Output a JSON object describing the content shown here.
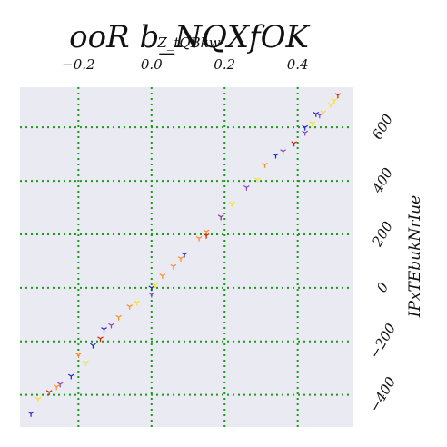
{
  "chart_data": {
    "type": "scatter",
    "title": "ooR b_NQXfOK",
    "xlabel": "Z_tQBkw",
    "ylabel": "IPxTEbukNrIue",
    "xlim": [
      -0.36,
      0.55
    ],
    "ylim": [
      -520,
      750
    ],
    "x_ticks": [
      -0.2,
      0.0,
      0.2,
      0.4
    ],
    "x_tick_labels": [
      "−0.2",
      "0.0",
      "0.2",
      "0.4"
    ],
    "y_ticks": [
      -400,
      -200,
      0,
      200,
      400,
      600
    ],
    "y_tick_labels": [
      "−400",
      "−200",
      "0",
      "200",
      "400",
      "600"
    ],
    "x_axis_position": "top",
    "y_axis_position": "right",
    "grid": true,
    "grid_style": "dotted",
    "grid_color": "#1a9a1a",
    "background": "#eaeaf2",
    "marker": "tri_down",
    "series": [
      {
        "color": "#2222cc",
        "x": [
          -0.33,
          -0.22,
          -0.16,
          -0.13,
          0.0,
          0.09,
          0.34,
          0.42,
          0.45
        ],
        "y": [
          -470,
          -330,
          -215,
          -155,
          0,
          125,
          495,
          600,
          650
        ]
      },
      {
        "color": "#ffdd22",
        "x": [
          -0.31,
          -0.18,
          -0.04,
          0.01,
          0.22,
          0.29,
          0.44,
          0.47,
          0.49,
          0.5
        ],
        "y": [
          -415,
          -280,
          -55,
          10,
          315,
          405,
          615,
          655,
          685,
          700
        ]
      },
      {
        "color": "#ff8a1e",
        "x": [
          -0.26,
          -0.2,
          -0.09,
          -0.06,
          0.03,
          0.06,
          0.08,
          0.13,
          0.15,
          0.31
        ],
        "y": [
          -370,
          -250,
          -110,
          -70,
          45,
          80,
          110,
          185,
          210,
          460
        ]
      },
      {
        "color": "#cc2200",
        "x": [
          -0.28,
          -0.14,
          0.15,
          0.19,
          0.39,
          0.51
        ],
        "y": [
          -390,
          -190,
          195,
          265,
          540,
          720
        ]
      },
      {
        "color": "#8844bb",
        "x": [
          -0.25,
          -0.11,
          0.0,
          0.19,
          0.26,
          0.36,
          0.42,
          0.46
        ],
        "y": [
          -360,
          -140,
          -25,
          265,
          375,
          510,
          580,
          645
        ]
      }
    ]
  }
}
